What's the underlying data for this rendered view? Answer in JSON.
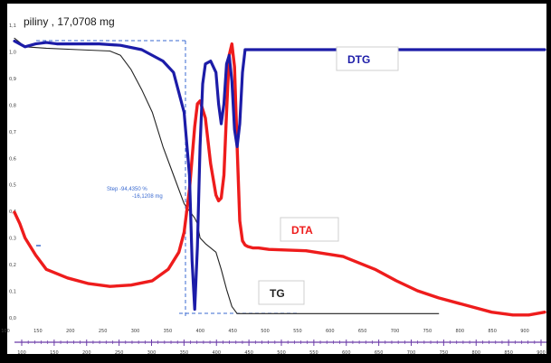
{
  "sample_label": "piliny , 17,0708 mg",
  "step_annotation": {
    "line1": "Step   -94,4350 %",
    "line2": "-16,1208 mg"
  },
  "colors": {
    "background": "#000000",
    "plot_background": "#ffffff",
    "dtg": "#1c1ca8",
    "dta": "#ee1c1c",
    "tg": "#222222",
    "axis": "#6b3aa8",
    "annotation": "#3a6ad0"
  },
  "chart_data": {
    "type": "line",
    "title": "piliny , 17,0708 mg",
    "xlabel": "",
    "ylabel": "",
    "xlim": [
      0,
      100
    ],
    "ylim": [
      0,
      100
    ],
    "grid": false,
    "legend": "inline labels",
    "x_tick_labels": [
      "100",
      "150",
      "200",
      "250",
      "300",
      "350",
      "400",
      "450",
      "500",
      "550",
      "600",
      "650",
      "700",
      "750",
      "800",
      "850",
      "900"
    ],
    "left_tick_labels": [
      "1,1",
      "1,0",
      "0,9",
      "0,8",
      "0,7",
      "0,6",
      "0,5",
      "0,4",
      "0,3",
      "0,2",
      "0,1",
      "0,0"
    ],
    "series": [
      {
        "name": "DTG",
        "label": "DTG",
        "color": "#1c1ca8",
        "x": [
          0,
          2,
          4,
          6,
          8,
          12,
          16,
          20,
          24,
          28,
          30,
          32,
          33,
          33.5,
          34,
          34.5,
          35,
          35.5,
          36,
          37,
          38,
          38.5,
          39,
          39.5,
          40,
          40.5,
          41,
          41.5,
          42,
          42.5,
          43,
          43.5,
          44,
          45,
          60,
          80,
          100
        ],
        "y": [
          97,
          95,
          96,
          96.5,
          96,
          96,
          96,
          95.5,
          94,
          90,
          86,
          72,
          50,
          20,
          3,
          25,
          60,
          82,
          89,
          90,
          86,
          75,
          68,
          75,
          89,
          92,
          83,
          66,
          60,
          68,
          86,
          94,
          94,
          94,
          94,
          94,
          94
        ]
      },
      {
        "name": "DTA",
        "label": "DTA",
        "color": "#ee1c1c",
        "x": [
          0,
          1,
          2,
          4,
          6,
          10,
          14,
          18,
          22,
          26,
          29,
          31,
          32,
          33,
          34,
          34.5,
          35,
          36,
          37,
          38,
          38.5,
          39,
          39.5,
          40,
          40.5,
          41,
          41.5,
          42,
          42.5,
          43,
          43.5,
          44,
          45,
          46,
          48,
          55,
          62,
          68,
          72,
          76,
          80,
          86,
          90,
          94,
          97,
          100
        ],
        "y": [
          37,
          33,
          28,
          22,
          17,
          14,
          12,
          11,
          11.5,
          13,
          17,
          23,
          30,
          45,
          67,
          75,
          76,
          70,
          54,
          43,
          41,
          42,
          50,
          72,
          92,
          96,
          88,
          60,
          34,
          27,
          25.5,
          25,
          24.5,
          24.5,
          24,
          23.5,
          21.5,
          17,
          13,
          9.5,
          7,
          4,
          2,
          1,
          1,
          2
        ]
      },
      {
        "name": "TG",
        "label": "TG",
        "color": "#222222",
        "x": [
          0,
          2,
          6,
          12,
          18,
          20,
          22,
          24,
          26,
          28,
          30,
          32,
          34,
          34.5,
          35,
          36,
          38,
          39,
          40,
          41,
          42,
          50,
          60,
          70,
          80
        ],
        "y": [
          98,
          95,
          94.5,
          94,
          93.5,
          92,
          87,
          80,
          72,
          60,
          50,
          40,
          35,
          33,
          28,
          26,
          23,
          17,
          10,
          4,
          1.5,
          1.5,
          1.5,
          1.5,
          1.5
        ]
      }
    ]
  }
}
